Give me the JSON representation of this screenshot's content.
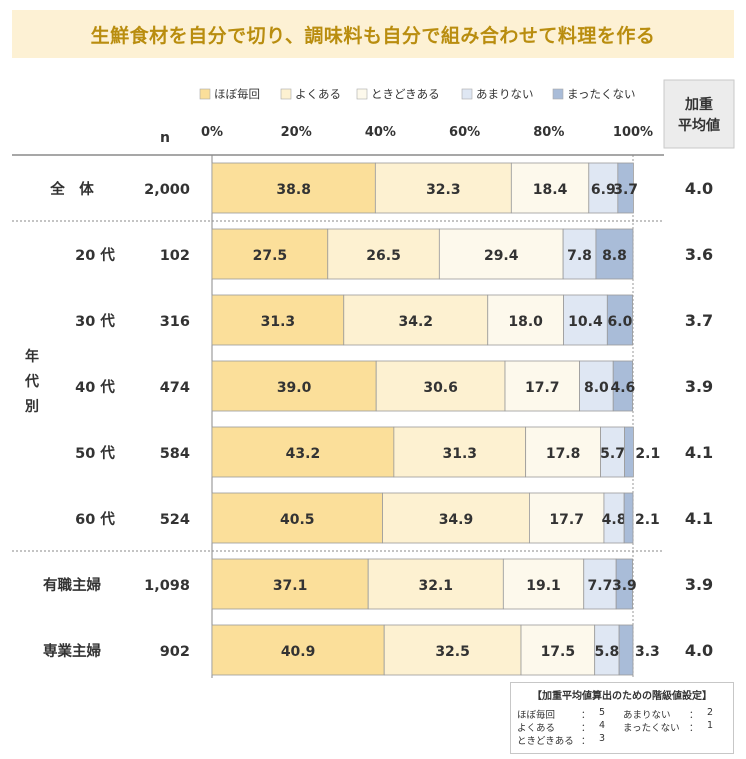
{
  "title": "生鮮食材を自分で切り、調味料も自分で組み合わせて料理を作る",
  "colors": {
    "title_bg": "#fdf1d4",
    "title_text": "#b98d0f",
    "segments": [
      "#fbdf9a",
      "#fdf1d1",
      "#fdf9ec",
      "#dfe7f3",
      "#a9bcd8"
    ]
  },
  "header": {
    "n_label": "n",
    "weighted_label_line1": "加重",
    "weighted_label_line2": "平均値"
  },
  "group_label": [
    "年",
    "代",
    "別"
  ],
  "chart_data": {
    "type": "bar",
    "stacked": true,
    "orientation": "horizontal",
    "percent_axis": true,
    "xlim": [
      0,
      100
    ],
    "x_ticks": [
      "0%",
      "20%",
      "40%",
      "60%",
      "80%",
      "100%"
    ],
    "legend": [
      "ほぼ毎回",
      "よくある",
      "ときどきある",
      "あまりない",
      "まったくない"
    ],
    "legend_position": "top",
    "categories": [
      "全　体",
      "20 代",
      "30 代",
      "40 代",
      "50 代",
      "60 代",
      "有職主婦",
      "専業主婦"
    ],
    "n": [
      "2,000",
      "102",
      "316",
      "474",
      "584",
      "524",
      "1,098",
      "902"
    ],
    "weighted_average": [
      "4.0",
      "3.6",
      "3.7",
      "3.9",
      "4.1",
      "4.1",
      "3.9",
      "4.0"
    ],
    "series": [
      {
        "name": "ほぼ毎回",
        "values": [
          38.8,
          27.5,
          31.3,
          39.0,
          43.2,
          40.5,
          37.1,
          40.9
        ]
      },
      {
        "name": "よくある",
        "values": [
          32.3,
          26.5,
          34.2,
          30.6,
          31.3,
          34.9,
          32.1,
          32.5
        ]
      },
      {
        "name": "ときどきある",
        "values": [
          18.4,
          29.4,
          18.0,
          17.7,
          17.8,
          17.7,
          19.1,
          17.5
        ]
      },
      {
        "name": "あまりない",
        "values": [
          6.9,
          7.8,
          10.4,
          8.0,
          5.7,
          4.8,
          7.7,
          5.8
        ]
      },
      {
        "name": "まったくない",
        "values": [
          3.7,
          8.8,
          6.0,
          4.6,
          2.1,
          2.1,
          3.9,
          3.3
        ]
      }
    ],
    "value_labels": [
      [
        "38.8",
        "32.3",
        "18.4",
        "6.9",
        "3.7"
      ],
      [
        "27.5",
        "26.5",
        "29.4",
        "7.8",
        "8.8"
      ],
      [
        "31.3",
        "34.2",
        "18.0",
        "10.4",
        "6.0"
      ],
      [
        "39.0",
        "30.6",
        "17.7",
        "8.0",
        "4.6"
      ],
      [
        "43.2",
        "31.3",
        "17.8",
        "5.7",
        "2.1"
      ],
      [
        "40.5",
        "34.9",
        "17.7",
        "4.8",
        "2.1"
      ],
      [
        "37.1",
        "32.1",
        "19.1",
        "7.7",
        "3.9"
      ],
      [
        "40.9",
        "32.5",
        "17.5",
        "5.8",
        "3.3"
      ]
    ]
  },
  "note": {
    "title": "【加重平均値算出のための階級値設定】",
    "rows": [
      [
        "ほぼ毎回",
        "：",
        "5",
        "あまりない",
        "：",
        "2"
      ],
      [
        "よくある",
        "：",
        "4",
        "まったくない",
        "：",
        "1"
      ],
      [
        "ときどきある",
        "：",
        "3",
        "",
        "",
        ""
      ]
    ]
  }
}
